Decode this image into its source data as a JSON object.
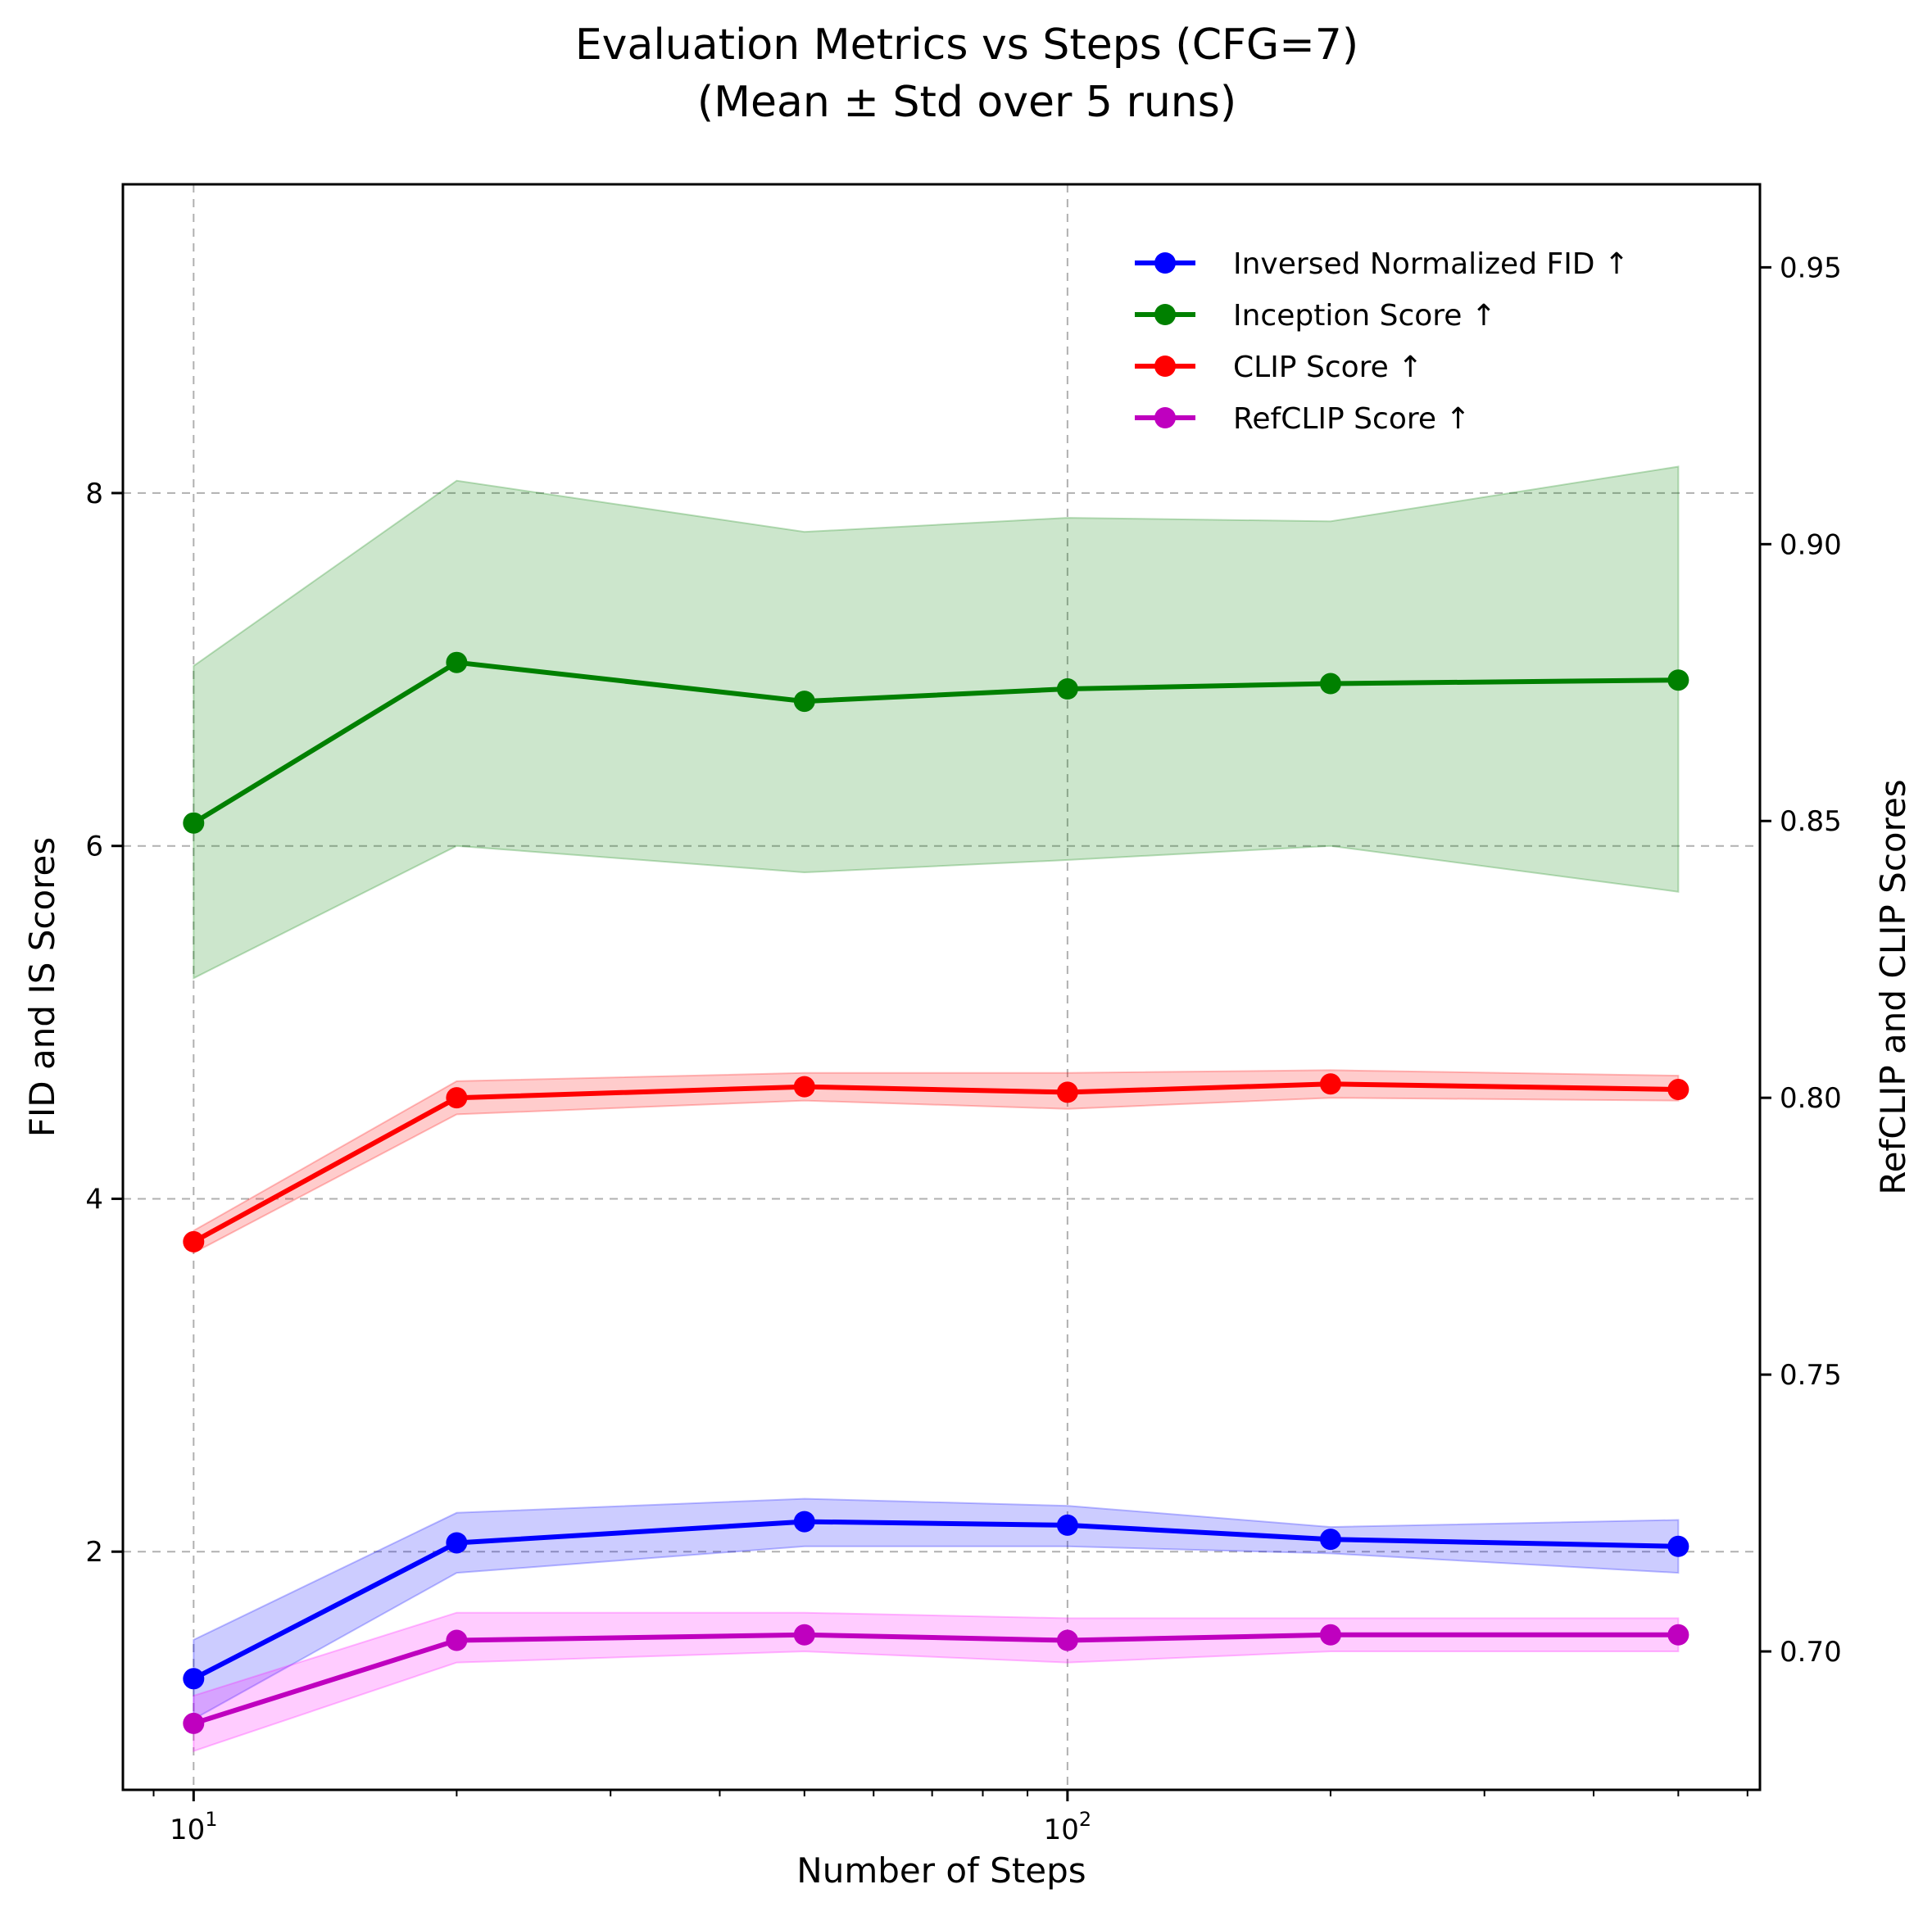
{
  "chart_data": {
    "type": "line",
    "title": "Evaluation Metrics vs Steps (CFG=7)",
    "subtitle": "(Mean ± Std over 5 runs)",
    "xlabel": "Number of Steps",
    "ylabel_left": "FID and IS Scores",
    "ylabel_right": "RefCLIP and CLIP Scores",
    "x_scale": "log",
    "xlim": [
      8.3,
      620
    ],
    "ylim_left": [
      0.65,
      9.75
    ],
    "ylim_right": [
      0.675,
      0.965
    ],
    "x_ticks": [
      {
        "value": 10,
        "base": "10",
        "exp": "1"
      },
      {
        "value": 100,
        "base": "10",
        "exp": "2"
      }
    ],
    "y_ticks_left": [
      {
        "value": 2,
        "label": "2"
      },
      {
        "value": 4,
        "label": "4"
      },
      {
        "value": 6,
        "label": "6"
      },
      {
        "value": 8,
        "label": "8"
      }
    ],
    "y_ticks_right": [
      {
        "value": 0.7,
        "label": "0.70"
      },
      {
        "value": 0.75,
        "label": "0.75"
      },
      {
        "value": 0.8,
        "label": "0.80"
      },
      {
        "value": 0.85,
        "label": "0.85"
      },
      {
        "value": 0.9,
        "label": "0.90"
      },
      {
        "value": 0.95,
        "label": "0.95"
      }
    ],
    "grid": true,
    "legend_position": "top-right",
    "x": [
      10,
      20,
      50,
      100,
      200,
      500
    ],
    "series": [
      {
        "name": "Inversed Normalized FID ↑",
        "axis": "left",
        "color": "#0000ff",
        "fill_color": "#0000ff",
        "mean": [
          1.28,
          2.05,
          2.17,
          2.15,
          2.07,
          2.03
        ],
        "lower": [
          1.05,
          1.88,
          2.03,
          2.03,
          1.99,
          1.88
        ],
        "upper": [
          1.5,
          2.22,
          2.3,
          2.26,
          2.14,
          2.18
        ]
      },
      {
        "name": "Inception Score ↑",
        "axis": "left",
        "color": "#008000",
        "fill_color": "#008000",
        "mean": [
          6.13,
          7.04,
          6.82,
          6.89,
          6.92,
          6.94
        ],
        "lower": [
          5.25,
          6.0,
          5.85,
          5.92,
          6.0,
          5.74
        ],
        "upper": [
          7.02,
          8.07,
          7.78,
          7.86,
          7.84,
          8.15
        ]
      },
      {
        "name": "CLIP Score ↑",
        "axis": "right",
        "color": "#ff0000",
        "fill_color": "#ff0000",
        "mean": [
          0.774,
          0.8,
          0.802,
          0.801,
          0.8025,
          0.8015
        ],
        "lower": [
          0.772,
          0.797,
          0.7995,
          0.798,
          0.8,
          0.7995
        ],
        "upper": [
          0.776,
          0.803,
          0.8045,
          0.8045,
          0.805,
          0.804
        ]
      },
      {
        "name": "RefCLIP Score ↑",
        "axis": "right",
        "color": "#bf00bf",
        "fill_color": "#ff00ff",
        "mean": [
          0.687,
          0.702,
          0.703,
          0.702,
          0.703,
          0.703
        ],
        "lower": [
          0.682,
          0.698,
          0.7,
          0.698,
          0.7,
          0.7
        ],
        "upper": [
          0.692,
          0.707,
          0.707,
          0.706,
          0.706,
          0.706
        ]
      }
    ]
  }
}
